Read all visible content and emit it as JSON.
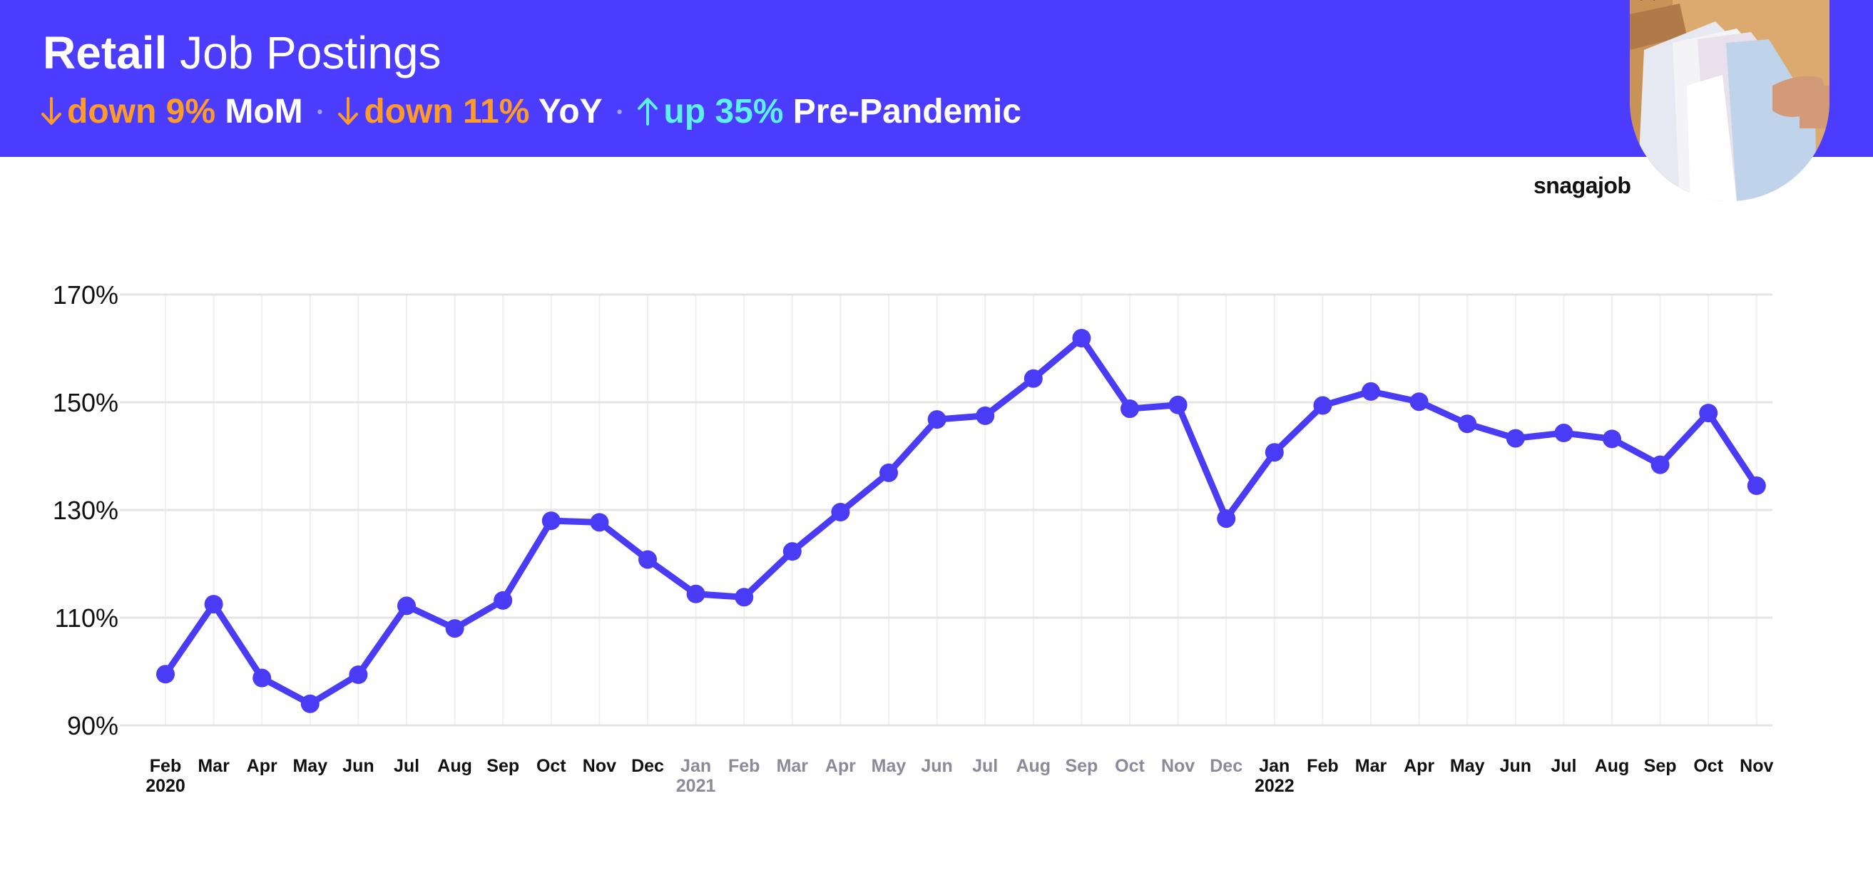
{
  "header": {
    "title_bold": "Retail",
    "title_rest": "Job Postings",
    "stats": [
      {
        "direction": "down",
        "text": "down 9%",
        "suffix": "MoM",
        "color": "#ff9b28"
      },
      {
        "direction": "down",
        "text": "down 11%",
        "suffix": "YoY",
        "color": "#ff9b28"
      },
      {
        "direction": "up",
        "text": "up 35%",
        "suffix": "Pre-Pandemic",
        "color": "#5ef0ef"
      }
    ],
    "separator": "•"
  },
  "brand": "snagajob",
  "colors": {
    "accent": "#4c3dfe",
    "line": "#4a3cf5",
    "down": "#ff9b28",
    "up": "#5ef0ef"
  },
  "chart_data": {
    "type": "line",
    "title": "",
    "xlabel": "",
    "ylabel": "",
    "ylim": [
      90,
      170
    ],
    "yticks": [
      90,
      110,
      130,
      150,
      170
    ],
    "ytick_labels": [
      "90%",
      "110%",
      "130%",
      "150%",
      "170%"
    ],
    "grid": true,
    "categories": [
      "Feb",
      "Mar",
      "Apr",
      "May",
      "Jun",
      "Jul",
      "Aug",
      "Sep",
      "Oct",
      "Nov",
      "Dec",
      "Jan",
      "Feb",
      "Mar",
      "Apr",
      "May",
      "Jun",
      "Jul",
      "Aug",
      "Sep",
      "Oct",
      "Nov",
      "Dec",
      "Jan",
      "Feb",
      "Mar",
      "Apr",
      "May",
      "Jun",
      "Jul",
      "Aug",
      "Sep",
      "Oct",
      "Nov"
    ],
    "year_labels": {
      "0": "2020",
      "11": "2021",
      "23": "2022"
    },
    "muted_range": [
      11,
      22
    ],
    "series": [
      {
        "values": [
          99.5,
          112.5,
          98.8,
          94.0,
          99.4,
          112.2,
          108.0,
          113.2,
          128.0,
          127.7,
          120.8,
          114.4,
          113.8,
          122.3,
          129.6,
          136.9,
          146.8,
          147.5,
          154.4,
          161.9,
          148.8,
          149.5,
          128.4,
          140.7,
          149.4,
          152.0,
          150.1,
          146.0,
          143.3,
          144.3,
          143.2,
          138.4,
          148.0,
          134.5
        ]
      }
    ]
  }
}
